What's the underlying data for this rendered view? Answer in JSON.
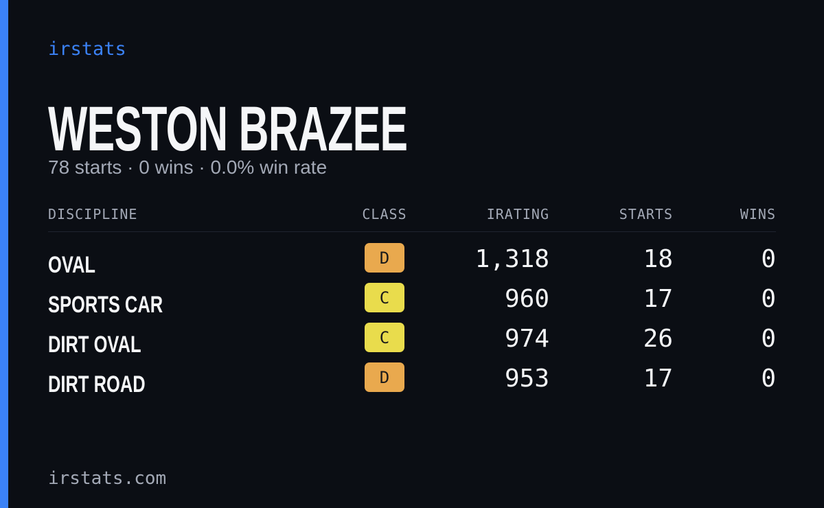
{
  "brand": "irstats",
  "player": {
    "name": "WESTON BRAZEE",
    "summary": "78 starts · 0 wins · 0.0% win rate"
  },
  "table": {
    "columns": [
      "DISCIPLINE",
      "CLASS",
      "IRATING",
      "STARTS",
      "WINS"
    ],
    "rows": [
      [
        "OVAL",
        "D",
        "1,318",
        "18",
        "0"
      ],
      [
        "SPORTS CAR",
        "C",
        "960",
        "17",
        "0"
      ],
      [
        "DIRT OVAL",
        "C",
        "974",
        "26",
        "0"
      ],
      [
        "DIRT ROAD",
        "D",
        "953",
        "17",
        "0"
      ]
    ],
    "badge_colors": [
      "#e9a94e",
      "#e9dc4c",
      "#e9dc4c",
      "#e9a94e"
    ]
  },
  "footer": "irstats.com"
}
